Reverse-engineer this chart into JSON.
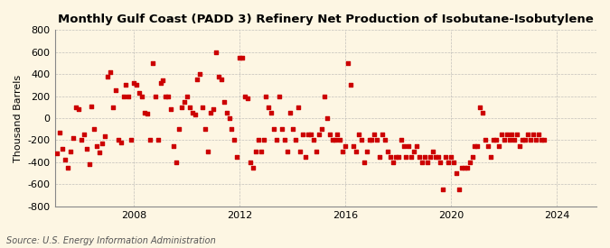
{
  "title": "Monthly Gulf Coast (PADD 3) Refinery Net Production of Isobutane-Isobutylene",
  "ylabel": "Thousand Barrels",
  "source": "Source: U.S. Energy Information Administration",
  "background_color": "#fdf6e3",
  "marker_color": "#cc0000",
  "ylim": [
    -800,
    800
  ],
  "xlim": [
    2005.0,
    2025.5
  ],
  "xticks": [
    2008,
    2012,
    2016,
    2020,
    2024
  ],
  "yticks": [
    -800,
    -600,
    -400,
    -200,
    0,
    200,
    400,
    600,
    800
  ],
  "scatter_x": [
    2005.1,
    2005.2,
    2005.3,
    2005.4,
    2005.5,
    2005.6,
    2005.7,
    2005.8,
    2005.9,
    2006.0,
    2006.1,
    2006.2,
    2006.3,
    2006.4,
    2006.5,
    2006.6,
    2006.7,
    2006.8,
    2006.9,
    2007.0,
    2007.1,
    2007.2,
    2007.3,
    2007.4,
    2007.5,
    2007.6,
    2007.7,
    2007.8,
    2007.9,
    2008.0,
    2008.1,
    2008.2,
    2008.3,
    2008.4,
    2008.5,
    2008.6,
    2008.7,
    2008.8,
    2008.9,
    2009.0,
    2009.1,
    2009.2,
    2009.3,
    2009.4,
    2009.5,
    2009.6,
    2009.7,
    2009.8,
    2009.9,
    2010.0,
    2010.1,
    2010.2,
    2010.3,
    2010.4,
    2010.5,
    2010.6,
    2010.7,
    2010.8,
    2010.9,
    2011.0,
    2011.1,
    2011.2,
    2011.3,
    2011.4,
    2011.5,
    2011.6,
    2011.7,
    2011.8,
    2011.9,
    2012.0,
    2012.1,
    2012.2,
    2012.3,
    2012.4,
    2012.5,
    2012.6,
    2012.7,
    2012.8,
    2012.9,
    2013.0,
    2013.1,
    2013.2,
    2013.3,
    2013.4,
    2013.5,
    2013.6,
    2013.7,
    2013.8,
    2013.9,
    2014.0,
    2014.1,
    2014.2,
    2014.3,
    2014.4,
    2014.5,
    2014.6,
    2014.7,
    2014.8,
    2014.9,
    2015.0,
    2015.1,
    2015.2,
    2015.3,
    2015.4,
    2015.5,
    2015.6,
    2015.7,
    2015.8,
    2015.9,
    2016.0,
    2016.1,
    2016.2,
    2016.3,
    2016.4,
    2016.5,
    2016.6,
    2016.7,
    2016.8,
    2016.9,
    2017.0,
    2017.1,
    2017.2,
    2017.3,
    2017.4,
    2017.5,
    2017.6,
    2017.7,
    2017.8,
    2017.9,
    2018.0,
    2018.1,
    2018.2,
    2018.3,
    2018.4,
    2018.5,
    2018.6,
    2018.7,
    2018.8,
    2018.9,
    2019.0,
    2019.1,
    2019.2,
    2019.3,
    2019.4,
    2019.5,
    2019.6,
    2019.7,
    2019.8,
    2019.9,
    2020.0,
    2020.1,
    2020.2,
    2020.3,
    2020.4,
    2020.5,
    2020.6,
    2020.7,
    2020.8,
    2020.9,
    2021.0,
    2021.1,
    2021.2,
    2021.3,
    2021.4,
    2021.5,
    2021.6,
    2021.7,
    2021.8,
    2021.9,
    2022.0,
    2022.1,
    2022.2,
    2022.3,
    2022.4,
    2022.5,
    2022.6,
    2022.7,
    2022.8,
    2022.9,
    2023.0,
    2023.1,
    2023.2,
    2023.3,
    2023.4,
    2023.5
  ],
  "scatter_y": [
    -320,
    -130,
    -280,
    -380,
    -450,
    -300,
    -180,
    100,
    80,
    -200,
    -150,
    -280,
    -420,
    110,
    -100,
    -250,
    -310,
    -230,
    -160,
    380,
    420,
    100,
    250,
    -200,
    -220,
    200,
    300,
    200,
    -200,
    320,
    300,
    230,
    200,
    50,
    40,
    -200,
    500,
    200,
    -200,
    320,
    340,
    200,
    200,
    80,
    -250,
    -400,
    -100,
    100,
    150,
    200,
    100,
    50,
    30,
    350,
    400,
    100,
    -100,
    -300,
    50,
    80,
    600,
    380,
    350,
    150,
    50,
    0,
    -100,
    -200,
    -350,
    550,
    550,
    200,
    180,
    -400,
    -450,
    -300,
    -200,
    -300,
    -200,
    200,
    100,
    50,
    -100,
    -200,
    200,
    -100,
    -200,
    -300,
    50,
    -100,
    -200,
    100,
    -300,
    -150,
    -350,
    -150,
    -150,
    -200,
    -300,
    -150,
    -100,
    200,
    0,
    -150,
    -200,
    -200,
    -150,
    -200,
    -300,
    -250,
    500,
    300,
    -250,
    -300,
    -150,
    -200,
    -400,
    -300,
    -200,
    -200,
    -150,
    -200,
    -350,
    -150,
    -200,
    -300,
    -350,
    -400,
    -350,
    -350,
    -200,
    -250,
    -350,
    -250,
    -350,
    -300,
    -250,
    -350,
    -400,
    -350,
    -400,
    -350,
    -300,
    -350,
    -350,
    -400,
    -650,
    -350,
    -400,
    -350,
    -400,
    -500,
    -650,
    -450,
    -450,
    -450,
    -400,
    -350,
    -250,
    -250,
    100,
    50,
    -200,
    -250,
    -350,
    -200,
    -200,
    -250,
    -150,
    -200,
    -150,
    -200,
    -150,
    -200,
    -150,
    -250,
    -200,
    -200,
    -150,
    -200,
    -150,
    -200,
    -150,
    -200,
    -200
  ]
}
